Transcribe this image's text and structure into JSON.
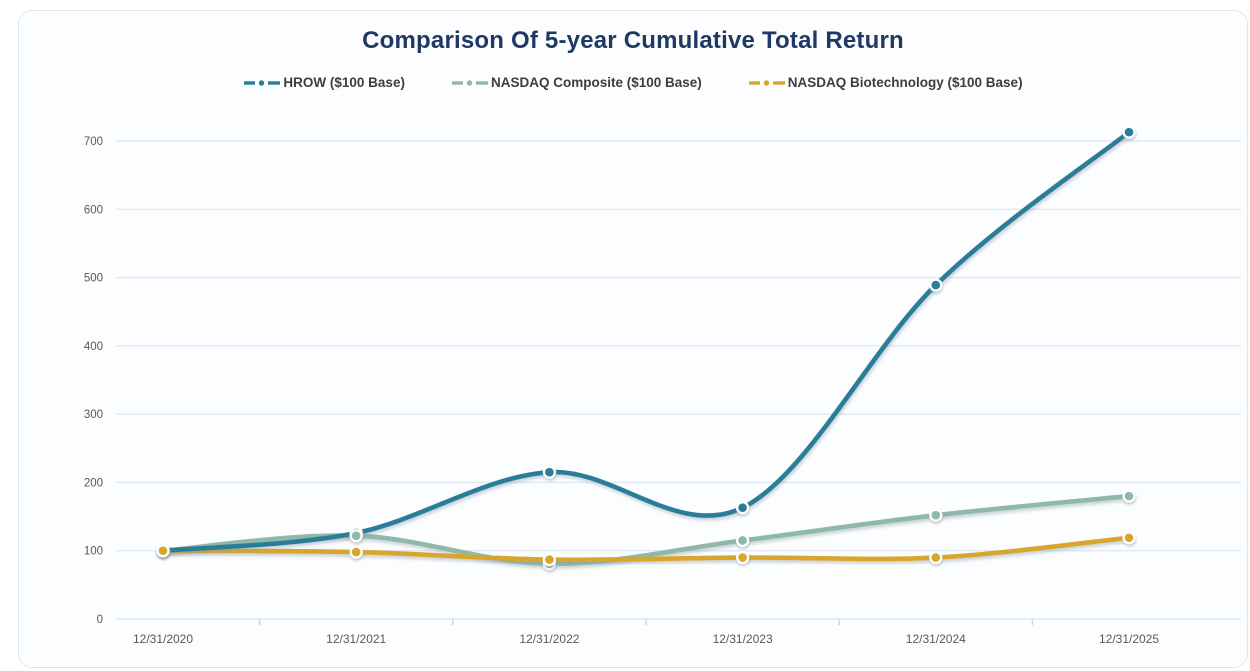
{
  "card": {
    "background": "#fbfdff",
    "border_color": "#dde7ef"
  },
  "chart_data": {
    "type": "line",
    "title": "Comparison Of 5-year Cumulative Total Return",
    "title_color": "#1f3864",
    "categories": [
      "12/31/2020",
      "12/31/2021",
      "12/31/2022",
      "12/31/2023",
      "12/31/2024",
      "12/31/2025"
    ],
    "series": [
      {
        "name": "HROW ($100 Base)",
        "color": "#2a7d98",
        "values": [
          100,
          126,
          215,
          163,
          489,
          713
        ]
      },
      {
        "name": "NASDAQ Composite ($100 Base)",
        "color": "#8fb8a8",
        "values": [
          100,
          122,
          81,
          115,
          152,
          180
        ]
      },
      {
        "name": "NASDAQ Biotechnology ($100 Base)",
        "color": "#d8a62a",
        "values": [
          100,
          98,
          87,
          90,
          90,
          119
        ]
      }
    ],
    "y_axis": {
      "min": 0,
      "max": 700,
      "step": 100,
      "plot_max": 750
    },
    "xlabel": "",
    "ylabel": "",
    "grid": true,
    "legend_position": "top",
    "smooth": true,
    "marker_style": "donut",
    "axis_text_color": "#595959",
    "gridline_color": "#dfe9f2",
    "tick_color": "#c9d6e2",
    "legend_text_color": "#3d3d3d"
  }
}
